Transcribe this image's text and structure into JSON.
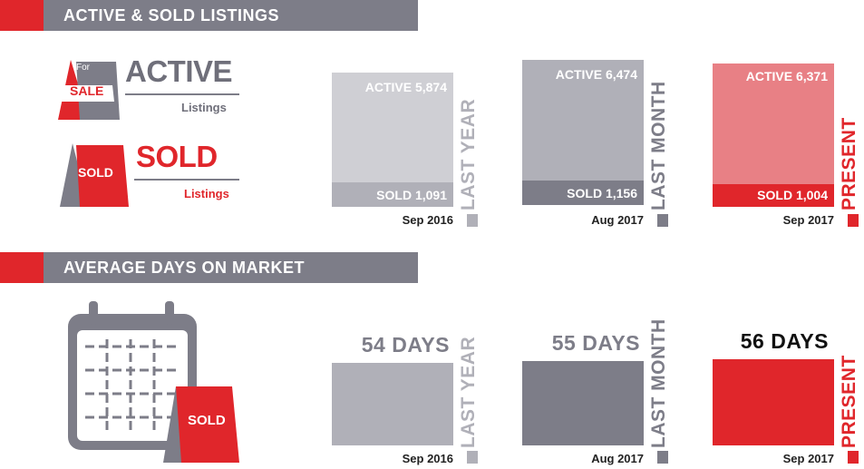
{
  "section1": {
    "title": "ACTIVE & SOLD LISTINGS"
  },
  "section2": {
    "title": "AVERAGE DAYS ON MARKET"
  },
  "legend": {
    "active_title": "ACTIVE",
    "active_sub": "Listings",
    "sign_for": "For",
    "sign_sale": "SALE",
    "sold_title": "SOLD",
    "sold_sub": "Listings",
    "sign_sold": "SOLD",
    "calendar_sign": "SOLD"
  },
  "colors": {
    "red": "#e0262b",
    "grey": "#7d7d88",
    "light_grey": "#cfcfd4",
    "mid_grey": "#b0b0b8",
    "pink": "#e88085"
  },
  "listings": [
    {
      "period": "LAST YEAR",
      "date": "Sep 2016",
      "active_label": "ACTIVE 5,874",
      "sold_label": "SOLD 1,091",
      "active": 5874,
      "sold": 1091
    },
    {
      "period": "LAST MONTH",
      "date": "Aug 2017",
      "active_label": "ACTIVE 6,474",
      "sold_label": "SOLD 1,156",
      "active": 6474,
      "sold": 1156
    },
    {
      "period": "PRESENT",
      "date": "Sep 2017",
      "active_label": "ACTIVE 6,371",
      "sold_label": "SOLD 1,004",
      "active": 6371,
      "sold": 1004
    }
  ],
  "days_on_market": [
    {
      "period": "LAST YEAR",
      "date": "Sep 2016",
      "label": "54 DAYS",
      "days": 54
    },
    {
      "period": "LAST MONTH",
      "date": "Aug 2017",
      "label": "55 DAYS",
      "days": 55
    },
    {
      "period": "PRESENT",
      "date": "Sep 2017",
      "label": "56 DAYS",
      "days": 56
    }
  ]
}
